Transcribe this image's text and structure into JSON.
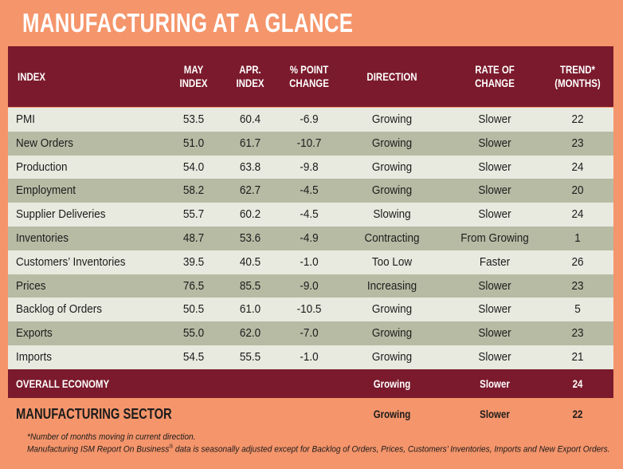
{
  "title": "MANUFACTURING AT A GLANCE",
  "table": {
    "header": [
      [
        "INDEX"
      ],
      [
        "MAY",
        "INDEX"
      ],
      [
        "APR.",
        "INDEX"
      ],
      [
        "% POINT",
        "CHANGE"
      ],
      [
        "DIRECTION"
      ],
      [
        "RATE OF",
        "CHANGE"
      ],
      [
        "TREND*",
        "(MONTHS)"
      ]
    ],
    "rows": [
      [
        "PMI",
        "53.5",
        "60.4",
        "-6.9",
        "Growing",
        "Slower",
        "22"
      ],
      [
        "New Orders",
        "51.0",
        "61.7",
        "-10.7",
        "Growing",
        "Slower",
        "23"
      ],
      [
        "Production",
        "54.0",
        "63.8",
        "-9.8",
        "Growing",
        "Slower",
        "24"
      ],
      [
        "Employment",
        "58.2",
        "62.7",
        "-4.5",
        "Growing",
        "Slower",
        "20"
      ],
      [
        "Supplier Deliveries",
        "55.7",
        "60.2",
        "-4.5",
        "Slowing",
        "Slower",
        "24"
      ],
      [
        "Inventories",
        "48.7",
        "53.6",
        "-4.9",
        "Contracting",
        "From Growing",
        "1"
      ],
      [
        "Customers’ Inventories",
        "39.5",
        "40.5",
        "-1.0",
        "Too Low",
        "Faster",
        "26"
      ],
      [
        "Prices",
        "76.5",
        "85.5",
        "-9.0",
        "Increasing",
        "Slower",
        "23"
      ],
      [
        "Backlog of Orders",
        "50.5",
        "61.0",
        "-10.5",
        "Growing",
        "Slower",
        "5"
      ],
      [
        "Exports",
        "55.0",
        "62.0",
        "-7.0",
        "Growing",
        "Slower",
        "23"
      ],
      [
        "Imports",
        "54.5",
        "55.5",
        "-1.0",
        "Growing",
        "Slower",
        "21"
      ]
    ],
    "overall": {
      "label": "OVERALL ECONOMY",
      "direction": "Growing",
      "rate": "Slower",
      "trend": "24"
    },
    "sector": {
      "label": "MANUFACTURING SECTOR",
      "direction": "Growing",
      "rate": "Slower",
      "trend": "22"
    }
  },
  "notes": {
    "first": "*Number of months moving in current direction.",
    "second": [
      "Manufacturing ISM Report On Business",
      "®",
      " data is seasonally adjusted except for Backlog of Orders, Prices, Customers’ Inventories, Imports and New Export Orders."
    ]
  }
}
